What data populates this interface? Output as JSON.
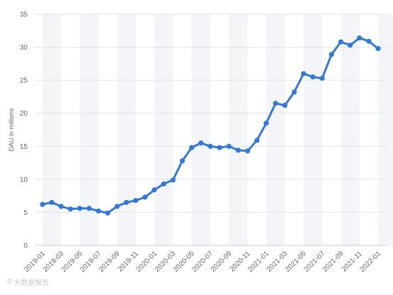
{
  "watermark": {
    "mark": "©",
    "text": "大数据报告"
  },
  "chart_data": {
    "type": "line",
    "title": "",
    "xlabel": "",
    "ylabel": "DAU in millions",
    "ylim": [
      0,
      35
    ],
    "yticks": [
      0,
      5,
      10,
      15,
      20,
      25,
      30,
      35
    ],
    "grid": true,
    "legend": "none",
    "line_color": "#3578d4",
    "band_color": "#f3f5f8",
    "grid_color": "#e3e3e3",
    "x_tick_labels": [
      "2019-01",
      "2019-03",
      "2019-05",
      "2019-07",
      "2019-09",
      "2019-11",
      "2020-01",
      "2020-03",
      "2020-05",
      "2020-07",
      "2020-09",
      "2020-11",
      "2021-01",
      "2021-03",
      "2021-05",
      "2021-07",
      "2021-09",
      "2021-11",
      "2022-01"
    ],
    "x": [
      "2019-01",
      "2019-02",
      "2019-03",
      "2019-04",
      "2019-05",
      "2019-06",
      "2019-07",
      "2019-08",
      "2019-09",
      "2019-10",
      "2019-11",
      "2019-12",
      "2020-01",
      "2020-02",
      "2020-03",
      "2020-04",
      "2020-05",
      "2020-06",
      "2020-07",
      "2020-08",
      "2020-09",
      "2020-10",
      "2020-11",
      "2020-12",
      "2021-01",
      "2021-02",
      "2021-03",
      "2021-04",
      "2021-05",
      "2021-06",
      "2021-07",
      "2021-08",
      "2021-09",
      "2021-10",
      "2021-11",
      "2021-12",
      "2022-01"
    ],
    "values": [
      6.2,
      6.5,
      5.9,
      5.5,
      5.6,
      5.6,
      5.2,
      4.9,
      5.9,
      6.5,
      6.8,
      7.3,
      8.4,
      9.3,
      9.9,
      12.8,
      14.8,
      15.5,
      15.0,
      14.8,
      15.0,
      14.4,
      14.3,
      15.9,
      18.5,
      21.5,
      21.2,
      23.2,
      26.0,
      25.5,
      25.3,
      28.9,
      30.8,
      30.3,
      31.4,
      30.9,
      29.8
    ]
  }
}
